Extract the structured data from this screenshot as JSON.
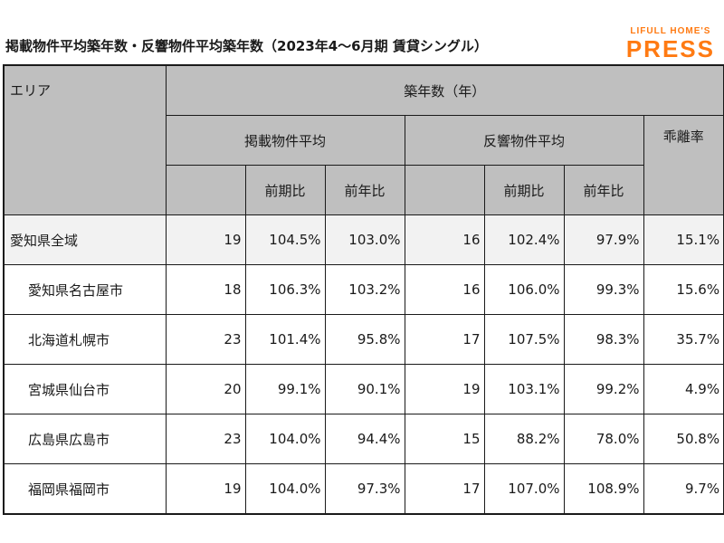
{
  "title": "掲載物件平均築年数・反響物件平均築年数（2023年4～6月期 賃貸シングル）",
  "logo": {
    "line1": "LIFULL HOME'S",
    "line2": "PRESS",
    "color": "#ff7a12"
  },
  "header": {
    "area": "エリア",
    "age": "築年数（年）",
    "listed": "掲載物件平均",
    "inquired": "反響物件平均",
    "gap": "乖離率",
    "qoq": "前期比",
    "yoy": "前年比"
  },
  "rows": [
    {
      "area": "愛知県全域",
      "listed_avg": "19",
      "listed_qoq": "104.5%",
      "listed_yoy": "103.0%",
      "inq_avg": "16",
      "inq_qoq": "102.4%",
      "inq_yoy": "97.9%",
      "gap": "15.1%"
    },
    {
      "area": "愛知県名古屋市",
      "listed_avg": "18",
      "listed_qoq": "106.3%",
      "listed_yoy": "103.2%",
      "inq_avg": "16",
      "inq_qoq": "106.0%",
      "inq_yoy": "99.3%",
      "gap": "15.6%"
    },
    {
      "area": "北海道札幌市",
      "listed_avg": "23",
      "listed_qoq": "101.4%",
      "listed_yoy": "95.8%",
      "inq_avg": "17",
      "inq_qoq": "107.5%",
      "inq_yoy": "98.3%",
      "gap": "35.7%"
    },
    {
      "area": "宮城県仙台市",
      "listed_avg": "20",
      "listed_qoq": "99.1%",
      "listed_yoy": "90.1%",
      "inq_avg": "19",
      "inq_qoq": "103.1%",
      "inq_yoy": "99.2%",
      "gap": "4.9%"
    },
    {
      "area": "広島県広島市",
      "listed_avg": "23",
      "listed_qoq": "104.0%",
      "listed_yoy": "94.4%",
      "inq_avg": "15",
      "inq_qoq": "88.2%",
      "inq_yoy": "78.0%",
      "gap": "50.8%"
    },
    {
      "area": "福岡県福岡市",
      "listed_avg": "19",
      "listed_qoq": "104.0%",
      "listed_yoy": "97.3%",
      "inq_avg": "17",
      "inq_qoq": "107.0%",
      "inq_yoy": "108.9%",
      "gap": "9.7%"
    }
  ]
}
